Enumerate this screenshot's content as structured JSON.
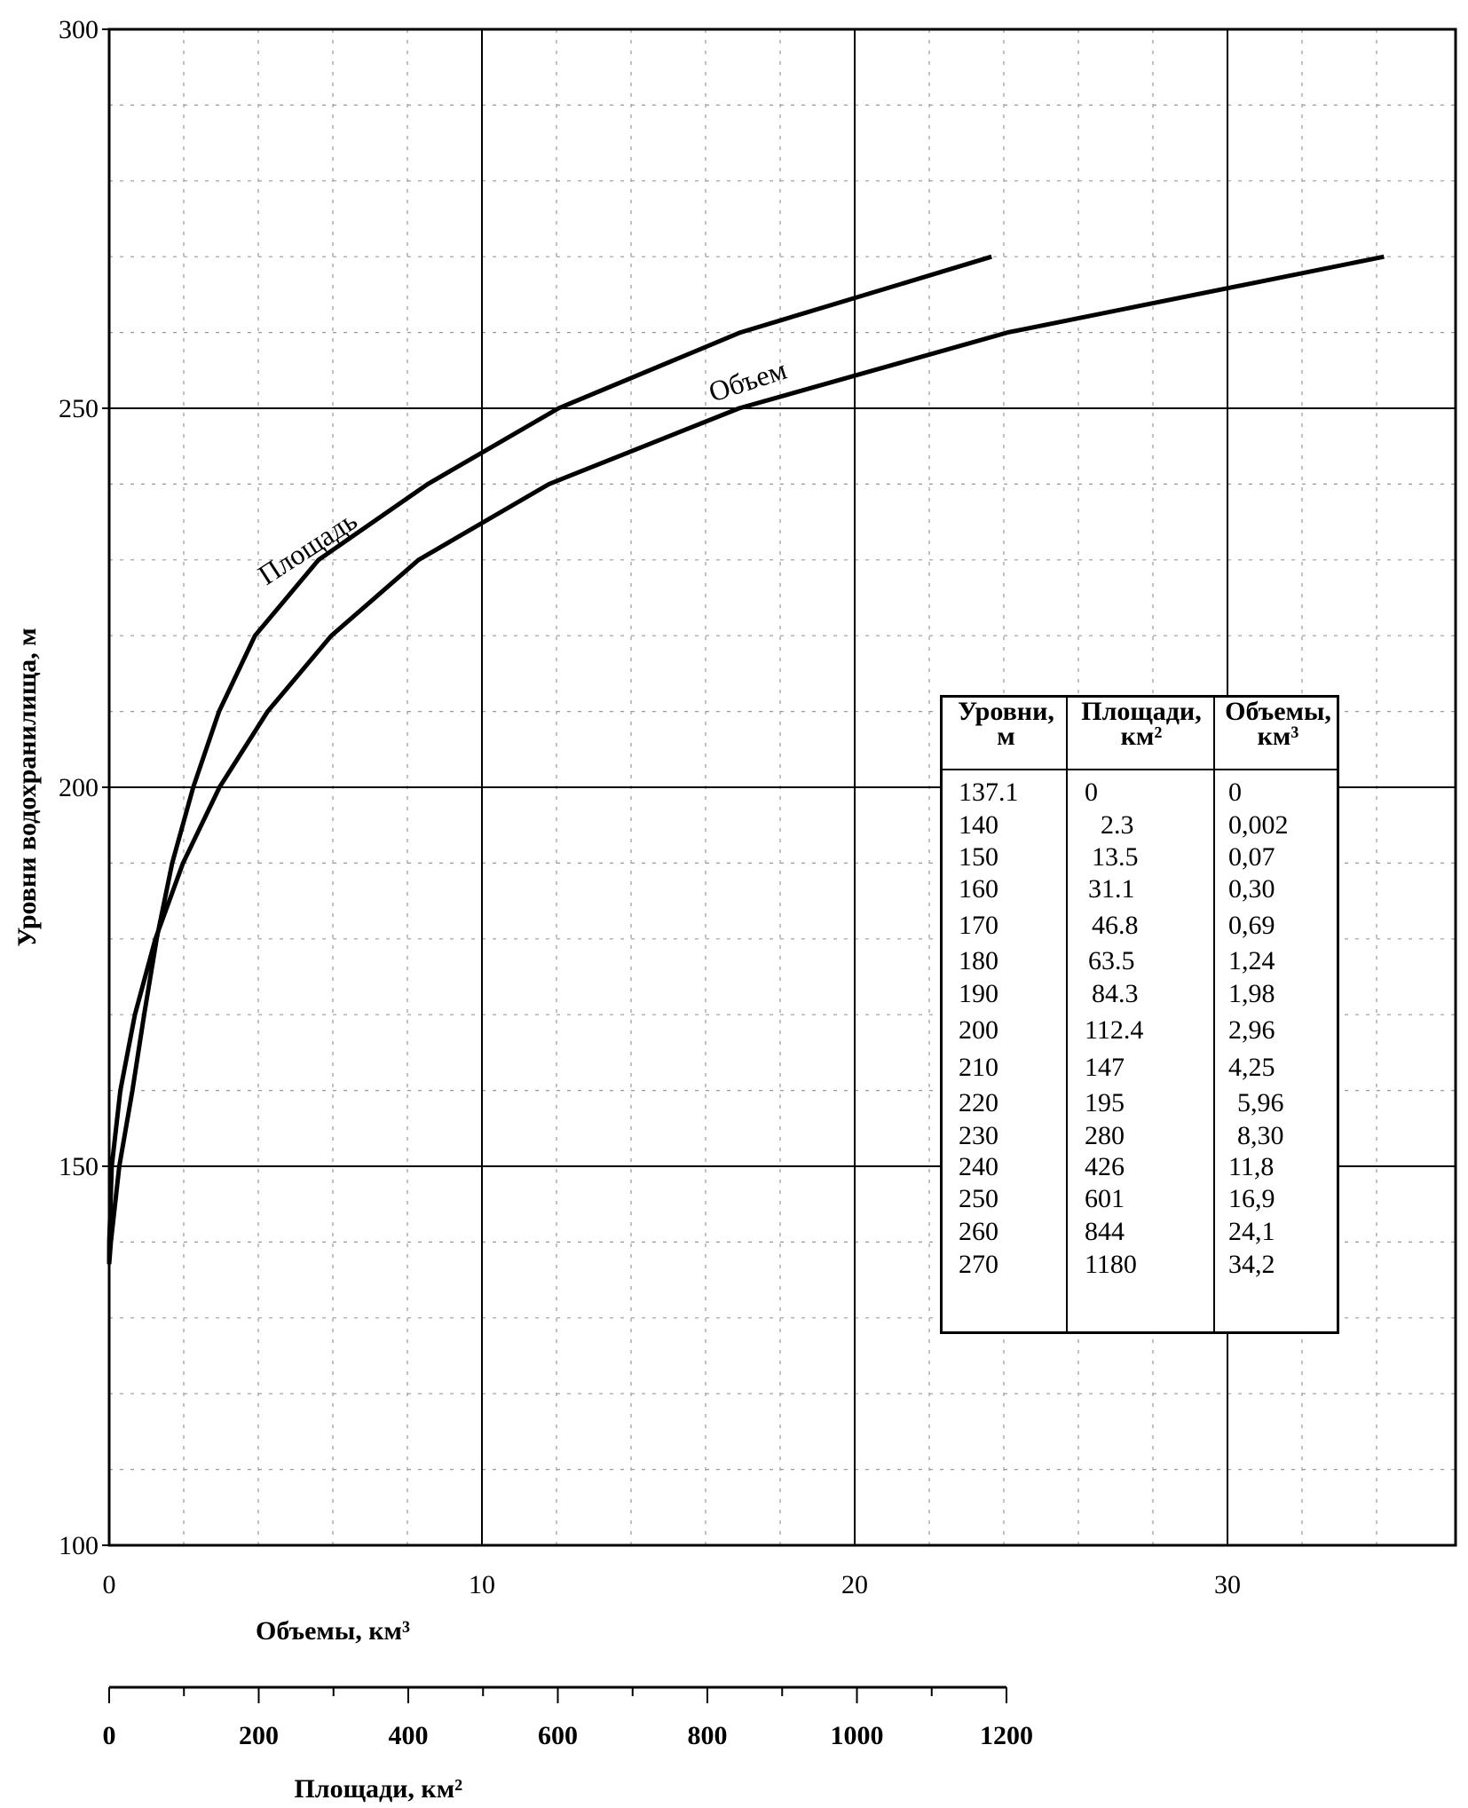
{
  "chart_data": {
    "type": "line",
    "ylabel": "Уровни водохранилища,  м",
    "ylim": [
      100,
      300
    ],
    "yticks": [
      "100",
      "150",
      "200",
      "250",
      "300"
    ],
    "x_axes": [
      {
        "label": "Объемы, км³",
        "lim": [
          0,
          36
        ],
        "ticks": [
          "0",
          "10",
          "20",
          "30"
        ]
      },
      {
        "label": "Площади, км²",
        "lim": [
          0,
          1200
        ],
        "ticks": [
          "0",
          "200",
          "400",
          "600",
          "800",
          "1000",
          "1200"
        ]
      }
    ],
    "grid": true,
    "series": [
      {
        "name": "Площадь",
        "axis": "area",
        "x": [
          0,
          2.3,
          13.5,
          31.1,
          46.8,
          63.5,
          84.3,
          112.4,
          147,
          195,
          280,
          426,
          601,
          844,
          1180
        ],
        "y": [
          137.1,
          140,
          150,
          160,
          170,
          180,
          190,
          200,
          210,
          220,
          230,
          240,
          250,
          260,
          270
        ]
      },
      {
        "name": "Объем",
        "axis": "volume",
        "x": [
          0,
          0.002,
          0.07,
          0.3,
          0.69,
          1.24,
          1.98,
          2.96,
          4.25,
          5.96,
          8.3,
          11.8,
          16.9,
          24.1,
          34.2
        ],
        "y": [
          137.1,
          140,
          150,
          160,
          170,
          180,
          190,
          200,
          210,
          220,
          230,
          240,
          250,
          260,
          270
        ]
      }
    ]
  },
  "table": {
    "headers": [
      {
        "line1": "Уровни,",
        "line2": "м"
      },
      {
        "line1": "Площади,",
        "line2": "км²"
      },
      {
        "line1": "Объемы,",
        "line2": "км³"
      }
    ],
    "rows": [
      [
        "137.1",
        "0",
        "0"
      ],
      [
        "140",
        "2.3",
        "0,002"
      ],
      [
        "150",
        "13.5",
        "0,07"
      ],
      [
        "160",
        "31.1",
        "0,30"
      ],
      [
        "170",
        "46.8",
        "0,69"
      ],
      [
        "180",
        "63.5",
        "1,24"
      ],
      [
        "190",
        "84.3",
        "1,98"
      ],
      [
        "200",
        "112.4",
        "2,96"
      ],
      [
        "210",
        "147",
        "4,25"
      ],
      [
        "220",
        "195",
        "5,96"
      ],
      [
        "230",
        "280",
        "8,30"
      ],
      [
        "240",
        "426",
        "11,8"
      ],
      [
        "250",
        "601",
        "16,9"
      ],
      [
        "260",
        "844",
        "24,1"
      ],
      [
        "270",
        "1180",
        "34,2"
      ]
    ]
  }
}
